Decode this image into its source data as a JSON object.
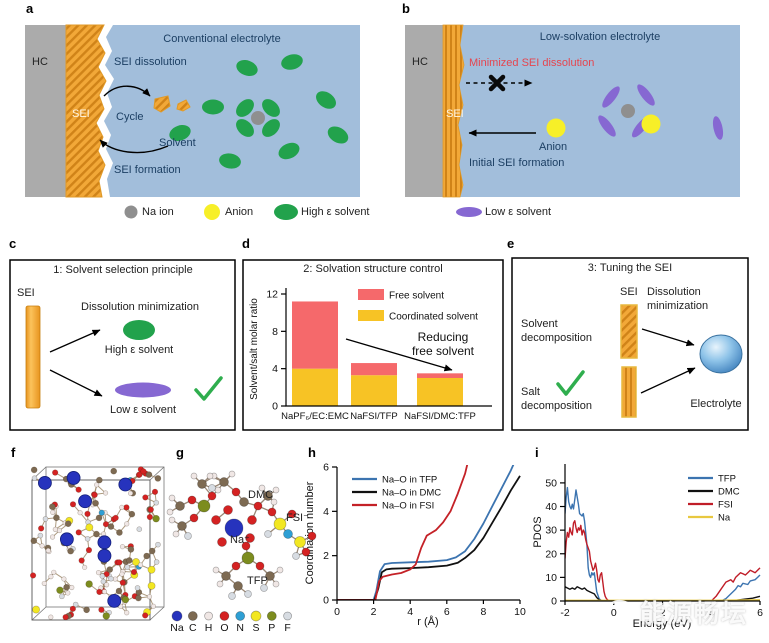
{
  "panels": {
    "a": {
      "letter": "a",
      "title": "Conventional electrolyte",
      "hc": "HC",
      "sei": "SEI",
      "sei_dissolution": "SEI dissolution",
      "cycle": "Cycle",
      "solvent": "Solvent",
      "sei_formation": "SEI formation"
    },
    "b": {
      "letter": "b",
      "title": "Low-solvation electrolyte",
      "hc": "HC",
      "sei": "SEI",
      "minimized_sei_dissolution": "Minimized SEI dissolution",
      "anion": "Anion",
      "initial_sei_formation": "Initial SEI formation"
    },
    "c": {
      "letter": "c",
      "title": "1: Solvent selection principle",
      "sei": "SEI",
      "dissolution_minimization": "Dissolution minimization",
      "high_e_solvent": "High ε solvent",
      "low_e_solvent": "Low ε solvent"
    },
    "d": {
      "letter": "d"
    },
    "e": {
      "letter": "e",
      "title": "3: Tuning the SEI",
      "sei": "SEI",
      "dissolution_minimization": "Dissolution minimization",
      "solvent_decomposition": "Solvent decomposition",
      "salt_decomposition": "Salt decomposition",
      "electrolyte": "Electrolyte"
    },
    "f": {
      "letter": "f"
    },
    "g": {
      "letter": "g",
      "molecule_labels": {
        "dmc": "DMC",
        "fsi": "FSI⁻",
        "na": "Na⁺",
        "tfp": "TFP"
      },
      "atom_legend": [
        {
          "symbol": "Na",
          "color": "#2633bd",
          "r": 5
        },
        {
          "symbol": "C",
          "color": "#7d6a52",
          "r": 4.5
        },
        {
          "symbol": "H",
          "color": "#f0e7e5",
          "r": 4
        },
        {
          "symbol": "O",
          "color": "#d42222",
          "r": 4.5
        },
        {
          "symbol": "N",
          "color": "#2e9fd4",
          "r": 4.5
        },
        {
          "symbol": "S",
          "color": "#f2e722",
          "r": 5
        },
        {
          "symbol": "P",
          "color": "#7c8c1e",
          "r": 4.5
        },
        {
          "symbol": "F",
          "color": "#d7dce2",
          "r": 4
        }
      ]
    },
    "h": {
      "letter": "h"
    },
    "i": {
      "letter": "i"
    }
  },
  "legend_top": {
    "na_ion": "Na ion",
    "anion": "Anion",
    "high_e_solvent": "High ε solvent",
    "low_e_solvent": "Low ε solvent"
  },
  "chart_data": [
    {
      "id": "solvation-structure",
      "type": "bar",
      "panel": "d",
      "title": "2: Solvation structure control",
      "categories": [
        "NaPF₆/EC:EMC",
        "NaFSI/TFP",
        "NaFSI/DMC:TFP"
      ],
      "stacked": true,
      "series": [
        {
          "name": "Coordinated solvent",
          "color": "#f7c325",
          "values": [
            4.0,
            3.3,
            3.0
          ]
        },
        {
          "name": "Free solvent",
          "color": "#f5696b",
          "values": [
            7.2,
            1.3,
            0.5
          ]
        }
      ],
      "legend": [
        {
          "label": "Free solvent",
          "color": "#f5696b"
        },
        {
          "label": "Coordinated solvent",
          "color": "#f7c325"
        }
      ],
      "ylabel": "Solvent/salt molar ratio",
      "yticks": [
        0,
        4,
        8,
        12
      ],
      "ylim": [
        0,
        12.6
      ],
      "annotation_lines": [
        "Reducing",
        "free solvent"
      ]
    },
    {
      "id": "coordination-number",
      "type": "line",
      "panel": "h",
      "xlabel": "r (Å)",
      "ylabel": "Coordination number",
      "xlim": [
        0,
        10
      ],
      "ylim": [
        0,
        6
      ],
      "xticks": [
        0,
        2,
        4,
        6,
        8,
        10
      ],
      "yticks": [
        0,
        2,
        4,
        6
      ],
      "legend_position": "top-left",
      "line_width": 1.8,
      "series": [
        {
          "name": "Na–O in TFP",
          "color": "#3c74b0",
          "points": [
            [
              0,
              0
            ],
            [
              2.0,
              0
            ],
            [
              2.15,
              0.4
            ],
            [
              2.35,
              1.3
            ],
            [
              2.6,
              1.62
            ],
            [
              3,
              1.67
            ],
            [
              4,
              1.7
            ],
            [
              5,
              1.73
            ],
            [
              6,
              1.8
            ],
            [
              6.5,
              1.92
            ],
            [
              7,
              2.2
            ],
            [
              7.5,
              2.75
            ],
            [
              8,
              3.45
            ],
            [
              8.5,
              4.25
            ],
            [
              9,
              5.05
            ],
            [
              9.5,
              5.85
            ],
            [
              9.8,
              6.4
            ]
          ]
        },
        {
          "name": "Na–O in DMC",
          "color": "#111111",
          "points": [
            [
              0,
              0
            ],
            [
              2.05,
              0
            ],
            [
              2.25,
              0.5
            ],
            [
              2.45,
              1.25
            ],
            [
              2.7,
              1.38
            ],
            [
              3,
              1.41
            ],
            [
              4,
              1.44
            ],
            [
              5,
              1.48
            ],
            [
              6,
              1.55
            ],
            [
              6.6,
              1.68
            ],
            [
              7,
              1.9
            ],
            [
              7.5,
              2.25
            ],
            [
              8,
              2.8
            ],
            [
              8.5,
              3.5
            ],
            [
              9,
              4.2
            ],
            [
              9.5,
              4.95
            ],
            [
              10,
              5.6
            ]
          ]
        },
        {
          "name": "Na–O in FSI",
          "color": "#c42127",
          "points": [
            [
              0,
              0
            ],
            [
              2.1,
              0
            ],
            [
              2.3,
              0.85
            ],
            [
              2.5,
              1.05
            ],
            [
              3,
              1.15
            ],
            [
              3.5,
              1.22
            ],
            [
              4,
              1.38
            ],
            [
              4.3,
              1.6
            ],
            [
              4.6,
              2.35
            ],
            [
              4.9,
              2.9
            ],
            [
              5.1,
              3.0
            ],
            [
              5.4,
              3.15
            ],
            [
              5.8,
              3.5
            ],
            [
              6.2,
              4.0
            ],
            [
              6.6,
              4.8
            ],
            [
              7.0,
              5.7
            ],
            [
              7.2,
              6.4
            ]
          ]
        }
      ]
    },
    {
      "id": "pdos",
      "type": "line",
      "panel": "i",
      "xlabel": "Energy (eV)",
      "ylabel": "PDOS",
      "xlim": [
        -2,
        6
      ],
      "ylim": [
        0,
        58
      ],
      "xticks": [
        -2,
        0,
        2,
        4,
        6
      ],
      "yticks": [
        0,
        10,
        20,
        30,
        40,
        50
      ],
      "legend_position": "top-right",
      "line_width": 1.4,
      "series": [
        {
          "name": "TFP",
          "color": "#3c74b0",
          "points": [
            [
              -2,
              37
            ],
            [
              -1.95,
              44
            ],
            [
              -1.9,
              48
            ],
            [
              -1.85,
              42
            ],
            [
              -1.8,
              40
            ],
            [
              -1.75,
              39
            ],
            [
              -1.7,
              41
            ],
            [
              -1.65,
              39
            ],
            [
              -1.6,
              43
            ],
            [
              -1.55,
              47
            ],
            [
              -1.5,
              44
            ],
            [
              -1.45,
              41
            ],
            [
              -1.4,
              37
            ],
            [
              -1.3,
              36
            ],
            [
              -1.25,
              37
            ],
            [
              -1.2,
              34
            ],
            [
              -1.1,
              24
            ],
            [
              -1.05,
              14
            ],
            [
              -1.0,
              11
            ],
            [
              -0.95,
              10
            ],
            [
              -0.9,
              12
            ],
            [
              -0.85,
              11
            ],
            [
              -0.8,
              12
            ],
            [
              -0.75,
              8
            ],
            [
              -0.7,
              4
            ],
            [
              -0.6,
              1
            ],
            [
              -0.5,
              0
            ],
            [
              4.4,
              0
            ],
            [
              4.6,
              1
            ],
            [
              4.8,
              3
            ],
            [
              5.0,
              5
            ],
            [
              5.1,
              6.5
            ],
            [
              5.2,
              6
            ],
            [
              5.3,
              7.5
            ],
            [
              5.5,
              7
            ],
            [
              5.6,
              8.5
            ],
            [
              5.8,
              9
            ],
            [
              5.9,
              10
            ],
            [
              6,
              11
            ]
          ]
        },
        {
          "name": "DMC",
          "color": "#111111",
          "points": [
            [
              -2,
              6
            ],
            [
              -1.9,
              5.5
            ],
            [
              -1.8,
              5
            ],
            [
              -1.7,
              5.5
            ],
            [
              -1.6,
              5
            ],
            [
              -1.5,
              6
            ],
            [
              -1.4,
              5.5
            ],
            [
              -1.3,
              5
            ],
            [
              -1.2,
              5.5
            ],
            [
              -1.1,
              4.5
            ],
            [
              -1.0,
              4
            ],
            [
              -0.9,
              3.5
            ],
            [
              -0.8,
              3
            ],
            [
              -0.7,
              1.5
            ],
            [
              -0.6,
              0.5
            ],
            [
              -0.5,
              0.2
            ],
            [
              -0.4,
              0
            ],
            [
              4.6,
              0
            ],
            [
              5.0,
              0.3
            ],
            [
              5.4,
              0.8
            ],
            [
              5.7,
              1.2
            ],
            [
              6,
              2
            ]
          ]
        },
        {
          "name": "FSI",
          "color": "#c01d28",
          "points": [
            [
              -2,
              18
            ],
            [
              -1.95,
              25
            ],
            [
              -1.9,
              29
            ],
            [
              -1.85,
              27
            ],
            [
              -1.8,
              31
            ],
            [
              -1.75,
              29
            ],
            [
              -1.7,
              28
            ],
            [
              -1.65,
              33
            ],
            [
              -1.6,
              34
            ],
            [
              -1.55,
              31
            ],
            [
              -1.5,
              29
            ],
            [
              -1.45,
              31
            ],
            [
              -1.4,
              30
            ],
            [
              -1.35,
              32
            ],
            [
              -1.3,
              28
            ],
            [
              -1.25,
              30
            ],
            [
              -1.2,
              29
            ],
            [
              -1.15,
              26
            ],
            [
              -1.1,
              24
            ],
            [
              -1.0,
              21
            ],
            [
              -0.95,
              17
            ],
            [
              -0.9,
              15
            ],
            [
              -0.85,
              13
            ],
            [
              -0.8,
              14
            ],
            [
              -0.75,
              16
            ],
            [
              -0.7,
              13
            ],
            [
              -0.65,
              9
            ],
            [
              -0.6,
              8
            ],
            [
              -0.55,
              11
            ],
            [
              -0.5,
              12
            ],
            [
              -0.45,
              8
            ],
            [
              -0.4,
              4
            ],
            [
              -0.35,
              2
            ],
            [
              -0.3,
              1
            ],
            [
              -0.2,
              0
            ],
            [
              4.0,
              0
            ],
            [
              4.2,
              2
            ],
            [
              4.4,
              5
            ],
            [
              4.6,
              8
            ],
            [
              4.8,
              9
            ],
            [
              4.9,
              8
            ],
            [
              5.0,
              10
            ],
            [
              5.1,
              11
            ],
            [
              5.2,
              12
            ],
            [
              5.3,
              11.5
            ],
            [
              5.4,
              11
            ],
            [
              5.5,
              12
            ],
            [
              5.6,
              13
            ],
            [
              5.7,
              12.5
            ],
            [
              5.8,
              12
            ],
            [
              5.9,
              13
            ],
            [
              6,
              14
            ]
          ]
        },
        {
          "name": "Na",
          "color": "#e8c840",
          "points": [
            [
              -2,
              0.3
            ],
            [
              0,
              0.3
            ],
            [
              2,
              0.3
            ],
            [
              4,
              0.3
            ],
            [
              6,
              0.5
            ]
          ]
        }
      ]
    }
  ],
  "watermark": {
    "text": "能源畅坛"
  },
  "colors": {
    "electrolyte_blue": "#a2bedb",
    "hc_grey": "#ababab",
    "sei_orange": "#f2a838",
    "sei_orange_dark": "#d08318",
    "high_e_green": "#22a24c",
    "low_e_purple": "#8668d2",
    "anion_yellow": "#f7ef28",
    "na_grey": "#8f8f8f",
    "free_red": "#f5696b",
    "coordinated_yellow": "#f7c325",
    "check_green": "#2fae4e",
    "minimized_red": "#e5454f"
  }
}
